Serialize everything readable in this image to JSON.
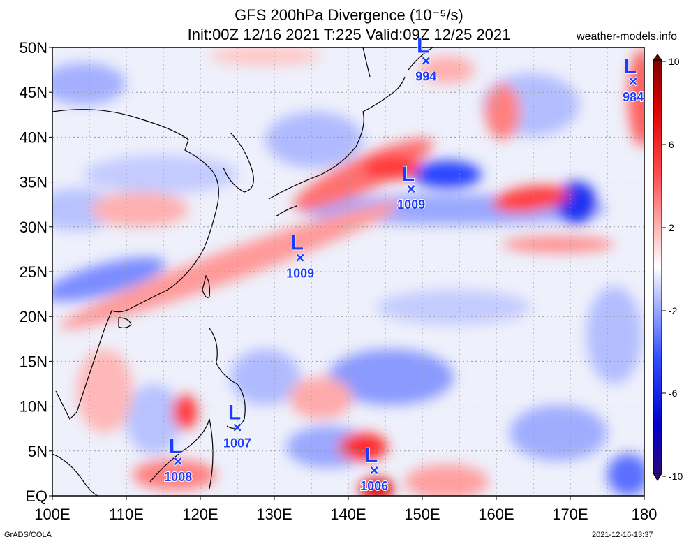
{
  "title": "GFS 200hPa Divergence (10⁻⁵/s)",
  "subtitle": "Init:00Z 12/16 2021 T:225 Valid:09Z 12/25 2021",
  "site": "weather-models.info",
  "footer_left": "GrADS/COLA",
  "footer_right": "2021-12-16-13:37",
  "lat_labels": [
    "EQ",
    "5N",
    "10N",
    "15N",
    "20N",
    "25N",
    "30N",
    "35N",
    "40N",
    "45N",
    "50N"
  ],
  "lon_labels": [
    "100E",
    "110E",
    "120E",
    "130E",
    "140E",
    "150E",
    "160E",
    "170E",
    "180"
  ],
  "colorbar": {
    "labels": [
      "10",
      "6",
      "2",
      "-2",
      "-6",
      "-10"
    ],
    "colors": [
      "#2a0a78",
      "#0000cc",
      "#1a3cff",
      "#5b73ff",
      "#a0b0ff",
      "#d8defc",
      "#ffffff",
      "#ffdede",
      "#ff9a9a",
      "#ff5050",
      "#ff1010",
      "#d00000",
      "#800000"
    ]
  },
  "lows": [
    {
      "pressure": "994",
      "lat": 48.5,
      "lon": 150.5
    },
    {
      "pressure": "984",
      "lat": 46.2,
      "lon": 178.5
    },
    {
      "pressure": "1009",
      "lat": 34.2,
      "lon": 148.5
    },
    {
      "pressure": "1009",
      "lat": 26.5,
      "lon": 133.5
    },
    {
      "pressure": "1007",
      "lat": 7.6,
      "lon": 125.0
    },
    {
      "pressure": "1008",
      "lat": 3.8,
      "lon": 117.0
    },
    {
      "pressure": "1006",
      "lat": 2.8,
      "lon": 143.5
    }
  ],
  "low_symbol": "L",
  "low_marker": "×",
  "low_color": "#1a3cff"
}
